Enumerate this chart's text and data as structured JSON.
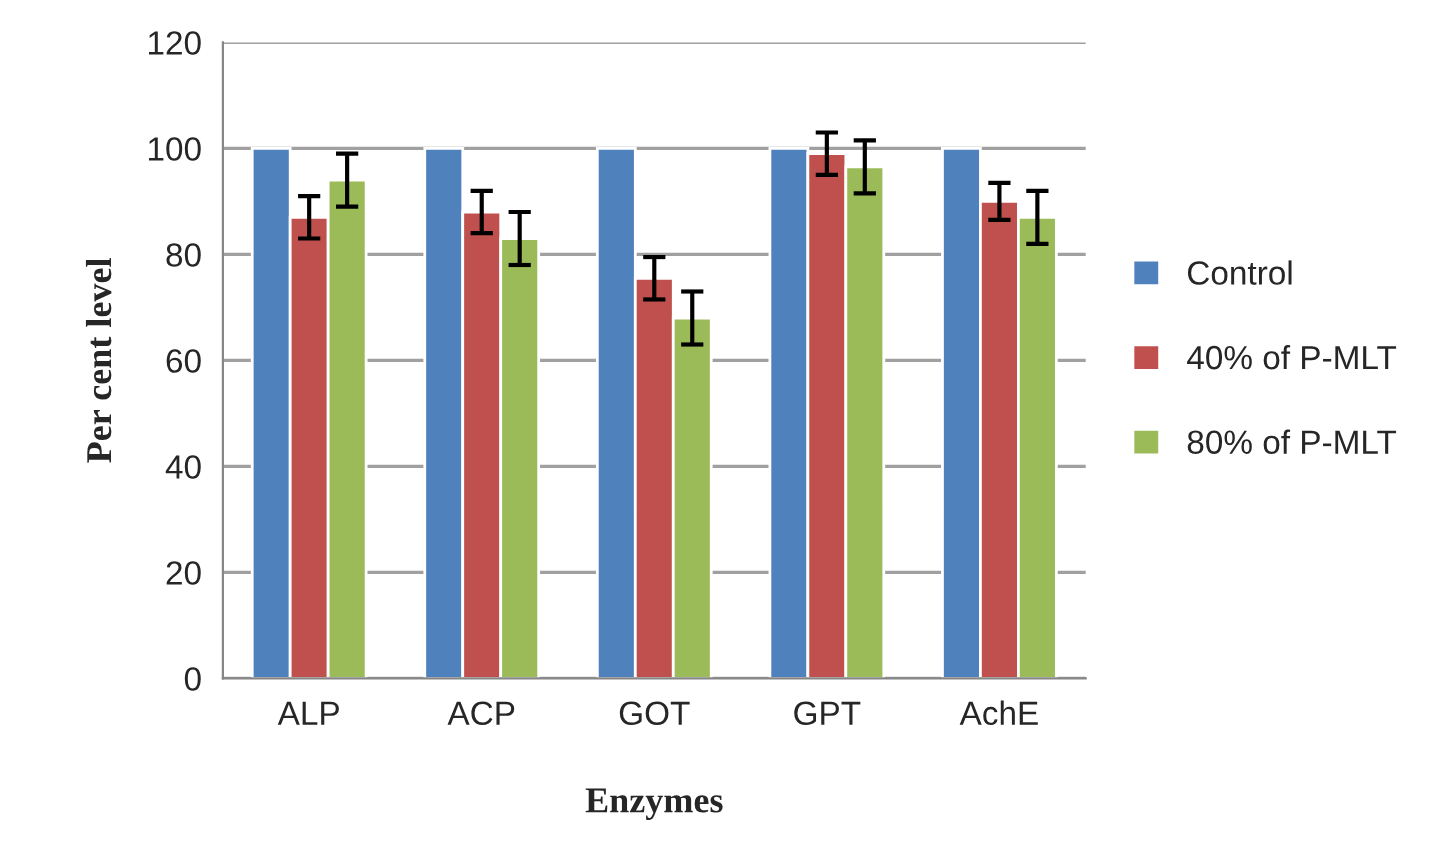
{
  "chart_data": {
    "type": "bar",
    "xlabel": "Enzymes",
    "ylabel": "Per cent level",
    "categories": [
      "ALP",
      "ACP",
      "GOT",
      "GPT",
      "AchE"
    ],
    "series": [
      {
        "name": "Control",
        "color": "#4f81bd",
        "values": [
          100,
          100,
          100,
          100,
          100
        ]
      },
      {
        "name": "40% of P-MLT",
        "color": "#c0504d",
        "values": [
          87,
          88,
          75.5,
          99,
          90
        ],
        "errors": [
          4,
          4,
          4,
          4,
          3.5
        ]
      },
      {
        "name": "80% of P-MLT",
        "color": "#9bbb59",
        "values": [
          94,
          83,
          68,
          96.5,
          87
        ],
        "errors": [
          5,
          5,
          5,
          5,
          5
        ]
      }
    ],
    "ylim": [
      0,
      120
    ],
    "yticks": [
      0,
      20,
      40,
      60,
      80,
      100,
      120
    ],
    "grid": "y",
    "legend": "right"
  }
}
